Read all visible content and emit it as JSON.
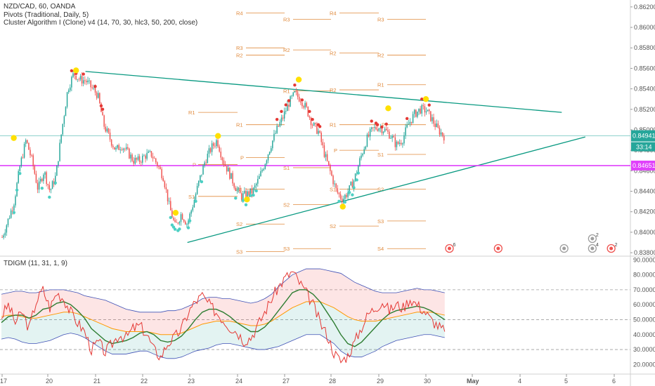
{
  "header": {
    "title": "NZD/CAD, 60, OANDA",
    "pivots_label": "Pivots (Traditional, Daily, 5)",
    "cluster_label": "Cluster Algorithm I (Clone) v4 (14, 70, 30, hlc3, 50, 200, close)"
  },
  "oscillator": {
    "title": "TDIGM (11, 31, 1, 9)"
  },
  "colors": {
    "up": "#26a69a",
    "down": "#ef5350",
    "trend": "#089981",
    "magenta": "#e040fb",
    "pivot": "#e08a3c",
    "yellow": "#ffe000",
    "aqua": "#4dd0c4"
  },
  "chart_data": [
    {
      "type": "candlestick",
      "symbol": "NZD/CAD",
      "timeframe": "60",
      "x_ticks": [
        "17",
        "20",
        "21",
        "22",
        "23",
        "24",
        "27",
        "28",
        "29",
        "30",
        "May",
        "4",
        "5",
        "6"
      ],
      "y_ticks": [
        "0.86200",
        "0.86000",
        "0.85800",
        "0.85600",
        "0.85400",
        "0.85200",
        "0.85000",
        "0.84800",
        "0.84600",
        "0.84400",
        "0.84200",
        "0.84000",
        "0.83800"
      ],
      "ylim": [
        0.8378,
        0.8624
      ],
      "last_price": "0.84941",
      "countdown": "33:14",
      "magenta_level_label": "0.84651",
      "magenta_level": 0.84651,
      "pivot_labels": [
        "R4",
        "R3",
        "R2",
        "R1",
        "P",
        "S1",
        "S2",
        "S3",
        "S4"
      ],
      "pivot_periods": [
        {
          "start": "23",
          "end": "24",
          "levels": {
            "R1": 0.8517,
            "P": 0.8466,
            "S1": 0.8435
          }
        },
        {
          "start": "24",
          "end": "27",
          "levels": {
            "R4": 0.8614,
            "R3": 0.858,
            "R2": 0.8573,
            "R1": 0.8505,
            "P": 0.8473,
            "S1": 0.8442,
            "S2": 0.8408,
            "S3": 0.8381
          }
        },
        {
          "start": "27",
          "end": "28",
          "levels": {
            "R3": 0.8608,
            "R2": 0.8578,
            "R1": 0.8538,
            "S1": 0.8463,
            "S2": 0.8427,
            "S3": 0.8384
          }
        },
        {
          "start": "28",
          "end": "29",
          "levels": {
            "R4": 0.8614,
            "R2": 0.8575,
            "R1": 0.8505,
            "R2b": 0.8539,
            "P": 0.848,
            "S1": 0.8442,
            "S2": 0.8406
          }
        },
        {
          "start": "29",
          "end": "30",
          "levels": {
            "R3": 0.8608,
            "R2": 0.8573,
            "R1": 0.8544,
            "P": 0.8505,
            "S1": 0.8476,
            "S2": 0.8442,
            "S3": 0.8411,
            "S4": 0.8384
          }
        }
      ],
      "trendlines": [
        {
          "from": [
            "20.8",
            0.8557
          ],
          "to": [
            "May+1.9",
            0.8517
          ]
        },
        {
          "from": [
            "22.95",
            0.839
          ],
          "to": [
            "May+2.4",
            0.8493
          ]
        }
      ],
      "close_path": [
        0.8395,
        0.8412,
        0.843,
        0.8465,
        0.849,
        0.847,
        0.8442,
        0.846,
        0.844,
        0.8455,
        0.85,
        0.854,
        0.8555,
        0.8549,
        0.8548,
        0.8541,
        0.8534,
        0.8505,
        0.8492,
        0.848,
        0.8485,
        0.8478,
        0.847,
        0.847,
        0.8475,
        0.8476,
        0.8466,
        0.8454,
        0.8425,
        0.8405,
        0.8418,
        0.8408,
        0.8428,
        0.845,
        0.847,
        0.8482,
        0.849,
        0.847,
        0.8458,
        0.8445,
        0.8435,
        0.8437,
        0.844,
        0.8452,
        0.8468,
        0.8485,
        0.85,
        0.8512,
        0.8526,
        0.8535,
        0.853,
        0.852,
        0.8505,
        0.8498,
        0.8476,
        0.8458,
        0.844,
        0.8432,
        0.844,
        0.8452,
        0.8472,
        0.849,
        0.85,
        0.8503,
        0.85,
        0.8495,
        0.8485,
        0.849,
        0.8505,
        0.8515,
        0.852,
        0.8519,
        0.851,
        0.85,
        0.8494
      ]
    },
    {
      "type": "line",
      "name": "TDIGM",
      "ylim": [
        15,
        92
      ],
      "y_ticks": [
        "90.00000",
        "80.00000",
        "70.00000",
        "60.00000",
        "50.00000",
        "40.00000",
        "30.00000",
        "20.00000"
      ],
      "dashed_levels": [
        70,
        50,
        30
      ],
      "rsi_path": [
        52,
        60,
        48,
        55,
        44,
        62,
        70,
        58,
        68,
        64,
        55,
        48,
        42,
        30,
        35,
        28,
        34,
        40,
        38,
        44,
        46,
        40,
        30,
        25,
        34,
        38,
        44,
        55,
        62,
        66,
        60,
        55,
        50,
        45,
        42,
        36,
        38,
        46,
        55,
        64,
        72,
        78,
        82,
        75,
        68,
        60,
        48,
        40,
        28,
        22,
        26,
        35,
        45,
        54,
        58,
        62,
        56,
        60,
        58,
        64,
        60,
        56,
        50,
        46,
        42
      ],
      "signal_path": [
        48,
        52,
        53,
        53,
        51,
        53,
        57,
        58,
        61,
        62,
        60,
        56,
        51,
        44,
        40,
        36,
        34,
        35,
        36,
        38,
        41,
        42,
        40,
        36,
        35,
        36,
        39,
        44,
        50,
        55,
        57,
        57,
        55,
        52,
        48,
        45,
        42,
        42,
        45,
        50,
        56,
        62,
        68,
        70,
        70,
        67,
        62,
        55,
        48,
        40,
        34,
        32,
        35,
        40,
        45,
        50,
        54,
        56,
        57,
        58,
        59,
        58,
        56,
        53,
        50
      ],
      "band_mid": [
        52,
        53,
        53,
        52,
        51,
        51,
        52,
        53,
        54,
        55,
        55,
        54,
        52,
        50,
        48,
        46,
        44,
        43,
        42,
        42,
        42,
        42,
        41,
        40,
        40,
        40,
        41,
        43,
        45,
        47,
        48,
        49,
        49,
        49,
        48,
        47,
        46,
        46,
        47,
        49,
        52,
        55,
        58,
        60,
        62,
        62,
        62,
        60,
        58,
        55,
        52,
        50,
        49,
        49,
        49,
        50,
        51,
        52,
        53,
        54,
        55,
        55,
        55,
        54,
        53
      ],
      "band_width": [
        15,
        15,
        16,
        17,
        17,
        17,
        17,
        17,
        16,
        15,
        14,
        14,
        14,
        15,
        16,
        17,
        17,
        16,
        15,
        14,
        13,
        13,
        14,
        15,
        16,
        16,
        16,
        16,
        16,
        17,
        17,
        16,
        15,
        15,
        15,
        15,
        15,
        16,
        17,
        18,
        20,
        21,
        22,
        22,
        22,
        22,
        22,
        23,
        24,
        26,
        26,
        25,
        24,
        22,
        20,
        18,
        17,
        16,
        16,
        16,
        16,
        15,
        15,
        15,
        15
      ]
    }
  ],
  "events": [
    {
      "x": "30.5",
      "label": "6"
    },
    {
      "x": "May+0.55",
      "label": ""
    },
    {
      "x": "May+1.95",
      "label": ""
    },
    {
      "x": "May+2.55",
      "label": "2"
    },
    {
      "x": "May+2.55b",
      "label": "4"
    },
    {
      "x": "May+2.95",
      "label": "2"
    }
  ]
}
